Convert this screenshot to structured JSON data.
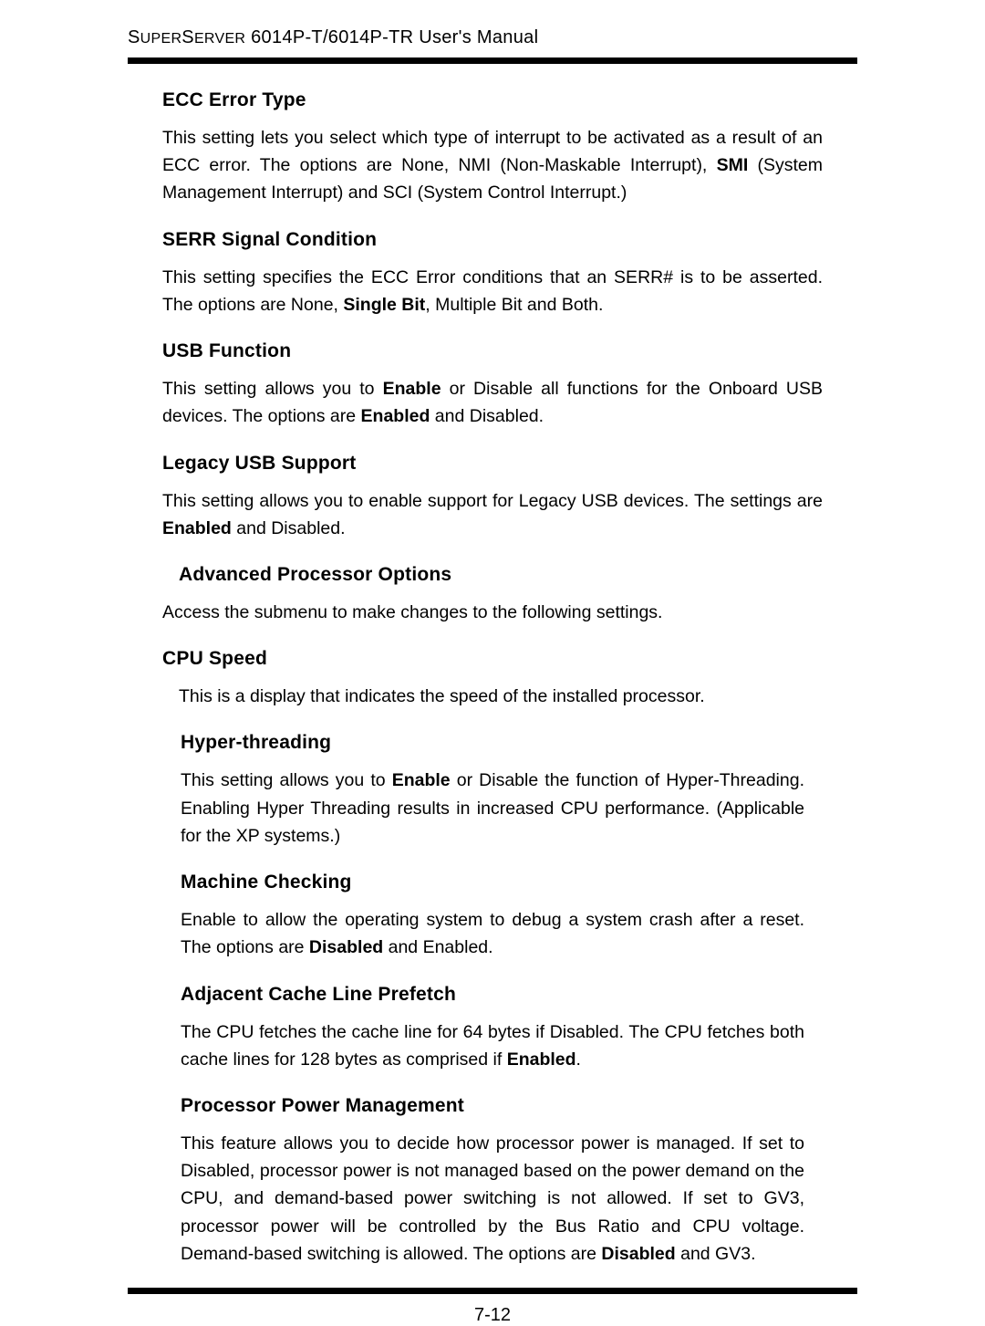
{
  "header": {
    "title_prefix_caps": "S",
    "title_word1_rest": "UPER",
    "title_word2_caps": "S",
    "title_word2_rest": "ERVER",
    "title_suffix": " 6014P-T/6014P-TR User's Manual"
  },
  "sections": {
    "ecc": {
      "heading": "ECC Error Type",
      "p1a": "This setting lets you select which type of interrupt to be activated as a result of an ECC error.  The options are None, NMI (Non-Maskable Interrupt), ",
      "p1b": "SMI",
      "p1c": " (System Management Interrupt) and SCI (System Control Interrupt.)"
    },
    "serr": {
      "heading": "SERR Signal Condition",
      "p1a": "This setting specifies the  ECC Error conditions that an SERR# is to be asserted. The options are None, ",
      "p1b": "Single Bit",
      "p1c": ", Multiple Bit and Both."
    },
    "usb": {
      "heading": "USB Function",
      "p1a": "This setting allows you to ",
      "p1b": "Enable",
      "p1c": " or Disable all functions for the Onboard USB devices.   The options are ",
      "p1d": "Enabled",
      "p1e": " and Disabled."
    },
    "legacy": {
      "heading": "Legacy USB Support",
      "p1a": "This setting allows you to enable support for Legacy USB devices.  The settings are ",
      "p1b": "Enabled",
      "p1c": " and Disabled."
    },
    "advproc": {
      "heading": "Advanced Processor Options",
      "p1": "Access the submenu to make changes to the following settings."
    },
    "cpuspeed": {
      "heading": "CPU Speed",
      "p1": "This is a display that indicates the speed of the installed processor."
    },
    "hyper": {
      "heading": "Hyper-threading",
      "p1a": "This setting allows you to ",
      "p1b": "Enable",
      "p1c": " or Disable the function of Hyper-Threading. Enabling Hyper Threading results in increased CPU performance. (Applicable for the XP systems.)"
    },
    "machine": {
      "heading": "Machine Checking",
      "p1a": "Enable to allow the operating system to debug a system crash after a reset. The options are ",
      "p1b": "Disabled",
      "p1c": " and Enabled."
    },
    "adjacent": {
      "heading": "Adjacent Cache Line Prefetch",
      "p1a": "The CPU fetches the cache line for 64 bytes if Disabled. The CPU fetches both cache lines for 128 bytes as comprised if ",
      "p1b": "Enabled",
      "p1c": "."
    },
    "power": {
      "heading": "Processor Power Management",
      "p1a": "This feature allows you to decide how processor power is managed.  If set to Disabled, processor power is not managed based on the power demand on the CPU, and  demand-based power switching is not allowed.  If set to GV3, processor power will be controlled  by the Bus Ratio and CPU voltage.  Demand-based switching is allowed. The options are ",
      "p1b": "Disabled",
      "p1c": " and GV3."
    }
  },
  "footer": {
    "page_number": "7-12"
  },
  "style": {
    "text_color": "#000000",
    "background_color": "#ffffff",
    "body_fontsize": 19.5,
    "heading_fontsize": 21,
    "header_fontsize": 20,
    "line_height": 1.55
  }
}
